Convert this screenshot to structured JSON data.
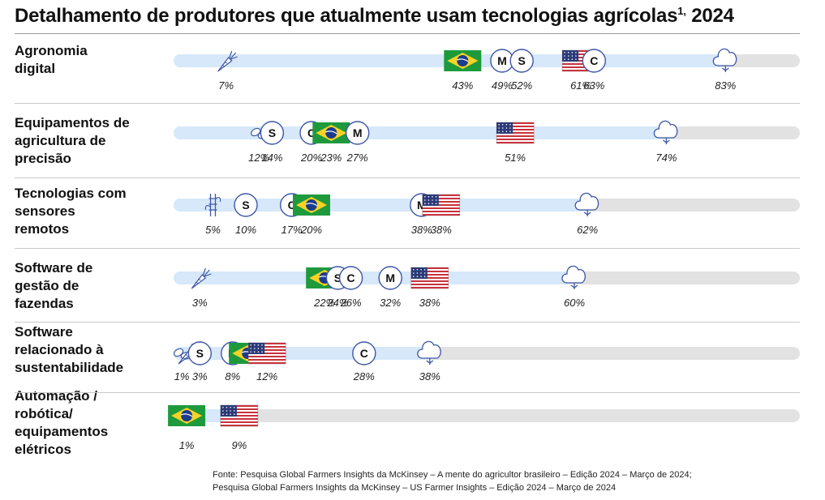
{
  "title": "Detalhamento de produtores que atualmente usam tecnologias agrícolas",
  "title_sup": "1,",
  "title_year": "2024",
  "chart_data": {
    "type": "dot-on-bar",
    "x_range": [
      0,
      100
    ],
    "unit": "%",
    "rows": [
      {
        "label": [
          "Agronomia",
          "digital"
        ],
        "max_value": 83,
        "markers": [
          {
            "series": "carrot",
            "value": 7,
            "label": "7%"
          },
          {
            "series": "brazil",
            "value": 43,
            "label": "43%"
          },
          {
            "series": "M",
            "value": 49,
            "label": "49%"
          },
          {
            "series": "S",
            "value": 52,
            "label": "52%"
          },
          {
            "series": "usa",
            "value": 61,
            "label": "61%"
          },
          {
            "series": "C",
            "value": 63,
            "label": "63%"
          },
          {
            "series": "cotton",
            "value": 83,
            "label": "83%"
          }
        ]
      },
      {
        "label": [
          "Equipamentos de",
          "agricultura de",
          "precisão"
        ],
        "max_value": 74,
        "markers": [
          {
            "series": "beans",
            "value": 12,
            "label": "12%"
          },
          {
            "series": "S",
            "value": 14,
            "label": "14%"
          },
          {
            "series": "C",
            "value": 20,
            "label": "20%"
          },
          {
            "series": "brazil",
            "value": 23,
            "label": "23%"
          },
          {
            "series": "M",
            "value": 27,
            "label": "27%"
          },
          {
            "series": "usa",
            "value": 51,
            "label": "51%"
          },
          {
            "series": "cotton",
            "value": 74,
            "label": "74%"
          }
        ]
      },
      {
        "label": [
          "Tecnologias com",
          "sensores",
          "remotos"
        ],
        "max_value": 62,
        "markers": [
          {
            "series": "sugarcane",
            "value": 5,
            "label": "5%"
          },
          {
            "series": "S",
            "value": 10,
            "label": "10%"
          },
          {
            "series": "C",
            "value": 17,
            "label": "17%"
          },
          {
            "series": "brazil",
            "value": 20,
            "label": "20%"
          },
          {
            "series": "M",
            "value": 38,
            "label": "38%"
          },
          {
            "series": "usa",
            "value": 38,
            "label": "38%"
          },
          {
            "series": "cotton",
            "value": 62,
            "label": "62%"
          }
        ]
      },
      {
        "label": [
          "Software de",
          "gestão de",
          "fazendas"
        ],
        "max_value": 60,
        "markers": [
          {
            "series": "carrot",
            "value": 3,
            "label": "3%"
          },
          {
            "series": "brazil",
            "value": 22,
            "label": "22%"
          },
          {
            "series": "S",
            "value": 24,
            "label": "24%"
          },
          {
            "series": "C",
            "value": 26,
            "label": "26%"
          },
          {
            "series": "M",
            "value": 32,
            "label": "32%"
          },
          {
            "series": "usa",
            "value": 38,
            "label": "38%"
          },
          {
            "series": "cotton",
            "value": 60,
            "label": "60%"
          }
        ]
      },
      {
        "label": [
          "Software",
          "relacionado à",
          "sustentabilidade"
        ],
        "max_value": 38,
        "markers": [
          {
            "series": "beans",
            "value": 1,
            "label": "1%"
          },
          {
            "series": "carrot",
            "value": 1,
            "label": ""
          },
          {
            "series": "S",
            "value": 3,
            "label": "3%"
          },
          {
            "series": "M",
            "value": 8,
            "label": "8%"
          },
          {
            "series": "brazil",
            "value": 12,
            "label": ""
          },
          {
            "series": "usa",
            "value": 12,
            "label": "12%"
          },
          {
            "series": "C",
            "value": 28,
            "label": "28%"
          },
          {
            "series": "cotton",
            "value": 38,
            "label": "38%"
          }
        ]
      },
      {
        "label": [
          "Automação /",
          "robótica/",
          "equipamentos",
          "elétricos"
        ],
        "max_value": 9,
        "markers": [
          {
            "series": "brazil",
            "value": 1,
            "label": "1%"
          },
          {
            "series": "usa",
            "value": 9,
            "label": "9%"
          }
        ]
      }
    ]
  },
  "source": [
    "Fonte: Pesquisa Global Farmers Insights da McKinsey – A mente do agricultor brasileiro – Edição 2024 – Março de 2024;",
    "Pesquisa Global Farmers Insights da McKinsey – US Farmer Insights – Edição 2024 – Março de 2024"
  ],
  "colors": {
    "track": "#e2e2e2",
    "fill": "#d6e8f9",
    "icon_stroke": "#3f57a6",
    "brazil_green": "#1e9a3d",
    "brazil_yellow": "#f8d223",
    "brazil_blue": "#1a3c8c",
    "usa_red": "#c8323c",
    "usa_blue": "#2b3a78"
  }
}
